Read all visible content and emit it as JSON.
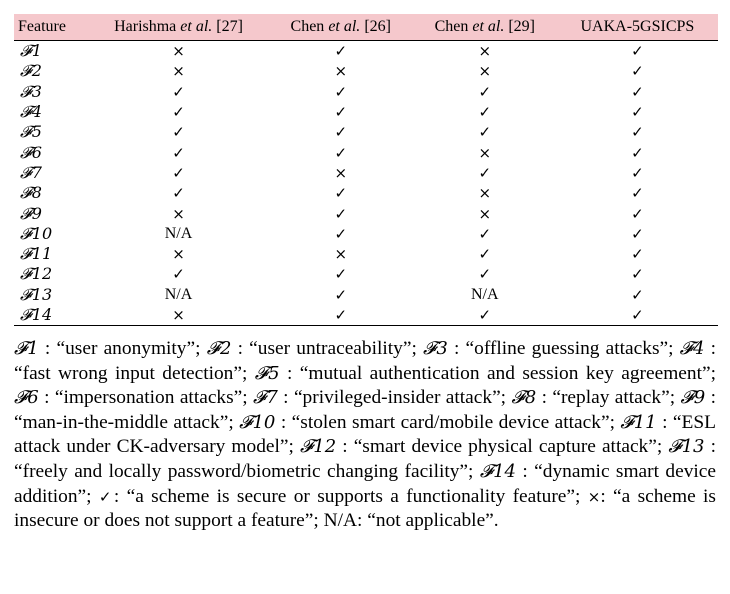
{
  "table": {
    "headers": [
      "Feature",
      "Harishma et al. [27]",
      "Chen et al. [26]",
      "Chen et al. [29]",
      "UAKA-5GSICPS"
    ],
    "header_parts": [
      {
        "pre": "Feature",
        "em": "",
        "post": ""
      },
      {
        "pre": "Harishma ",
        "em": "et al.",
        "post": " [27]"
      },
      {
        "pre": "Chen ",
        "em": "et al.",
        "post": " [26]"
      },
      {
        "pre": "Chen ",
        "em": "et al.",
        "post": " [29]"
      },
      {
        "pre": "UAKA-5GSICPS",
        "em": "",
        "post": ""
      }
    ],
    "rows": [
      {
        "feature": "𝓕1",
        "values": [
          "×",
          "✓",
          "×",
          "✓"
        ]
      },
      {
        "feature": "𝓕2",
        "values": [
          "×",
          "×",
          "×",
          "✓"
        ]
      },
      {
        "feature": "𝓕3",
        "values": [
          "✓",
          "✓",
          "✓",
          "✓"
        ]
      },
      {
        "feature": "𝓕4",
        "values": [
          "✓",
          "✓",
          "✓",
          "✓"
        ]
      },
      {
        "feature": "𝓕5",
        "values": [
          "✓",
          "✓",
          "✓",
          "✓"
        ]
      },
      {
        "feature": "𝓕6",
        "values": [
          "✓",
          "✓",
          "×",
          "✓"
        ]
      },
      {
        "feature": "𝓕7",
        "values": [
          "✓",
          "×",
          "✓",
          "✓"
        ]
      },
      {
        "feature": "𝓕8",
        "values": [
          "✓",
          "✓",
          "×",
          "✓"
        ]
      },
      {
        "feature": "𝓕9",
        "values": [
          "×",
          "✓",
          "×",
          "✓"
        ]
      },
      {
        "feature": "𝓕10",
        "values": [
          "N/A",
          "✓",
          "✓",
          "✓"
        ]
      },
      {
        "feature": "𝓕11",
        "values": [
          "×",
          "×",
          "✓",
          "✓"
        ]
      },
      {
        "feature": "𝓕12",
        "values": [
          "✓",
          "✓",
          "✓",
          "✓"
        ]
      },
      {
        "feature": "𝓕13",
        "values": [
          "N/A",
          "✓",
          "N/A",
          "✓"
        ]
      },
      {
        "feature": "𝓕14",
        "values": [
          "×",
          "✓",
          "✓",
          "✓"
        ]
      }
    ]
  },
  "legend": {
    "items": [
      {
        "key": "𝓕1",
        "sep": " : ",
        "text": "“user anonymity”; "
      },
      {
        "key": "𝓕2",
        "sep": " : ",
        "text": "“user untraceability”; "
      },
      {
        "key": "𝓕3",
        "sep": " : ",
        "text": "“offline guessing attacks”; "
      },
      {
        "key": "𝓕4",
        "sep": " : ",
        "text": "“fast wrong input detection”; "
      },
      {
        "key": "𝓕5",
        "sep": " : ",
        "text": "“mutual authentication and session key agreement”; "
      },
      {
        "key": "𝓕6",
        "sep": " : ",
        "text": "“impersonation attacks”; "
      },
      {
        "key": "𝓕7",
        "sep": " : ",
        "text": "“privileged-insider attack”; "
      },
      {
        "key": "𝓕8",
        "sep": " : ",
        "text": "“replay attack”; "
      },
      {
        "key": "𝓕9",
        "sep": " : ",
        "text": "“man-in-the-middle attack”; "
      },
      {
        "key": "𝓕10",
        "sep": " : ",
        "text": "“stolen smart card/mobile device attack”; "
      },
      {
        "key": "𝓕11",
        "sep": " : ",
        "text": "“ESL attack under CK-adversary model”; "
      },
      {
        "key": "𝓕12",
        "sep": " : ",
        "text": "“smart device physical capture attack”; "
      },
      {
        "key": "𝓕13",
        "sep": " : ",
        "text": "“freely and locally password/biometric changing facility”; "
      },
      {
        "key": "𝓕14",
        "sep": " : ",
        "text": "“dynamic smart device addition”; "
      },
      {
        "key": "✓",
        "sep": ": ",
        "text": "“a scheme is secure or supports a functionality feature”; "
      },
      {
        "key": "×",
        "sep": ": ",
        "text": "“a scheme is insecure or does not support a feature”; "
      },
      {
        "key": "N/A",
        "sep": ": ",
        "text": "“not applicable”."
      }
    ]
  }
}
